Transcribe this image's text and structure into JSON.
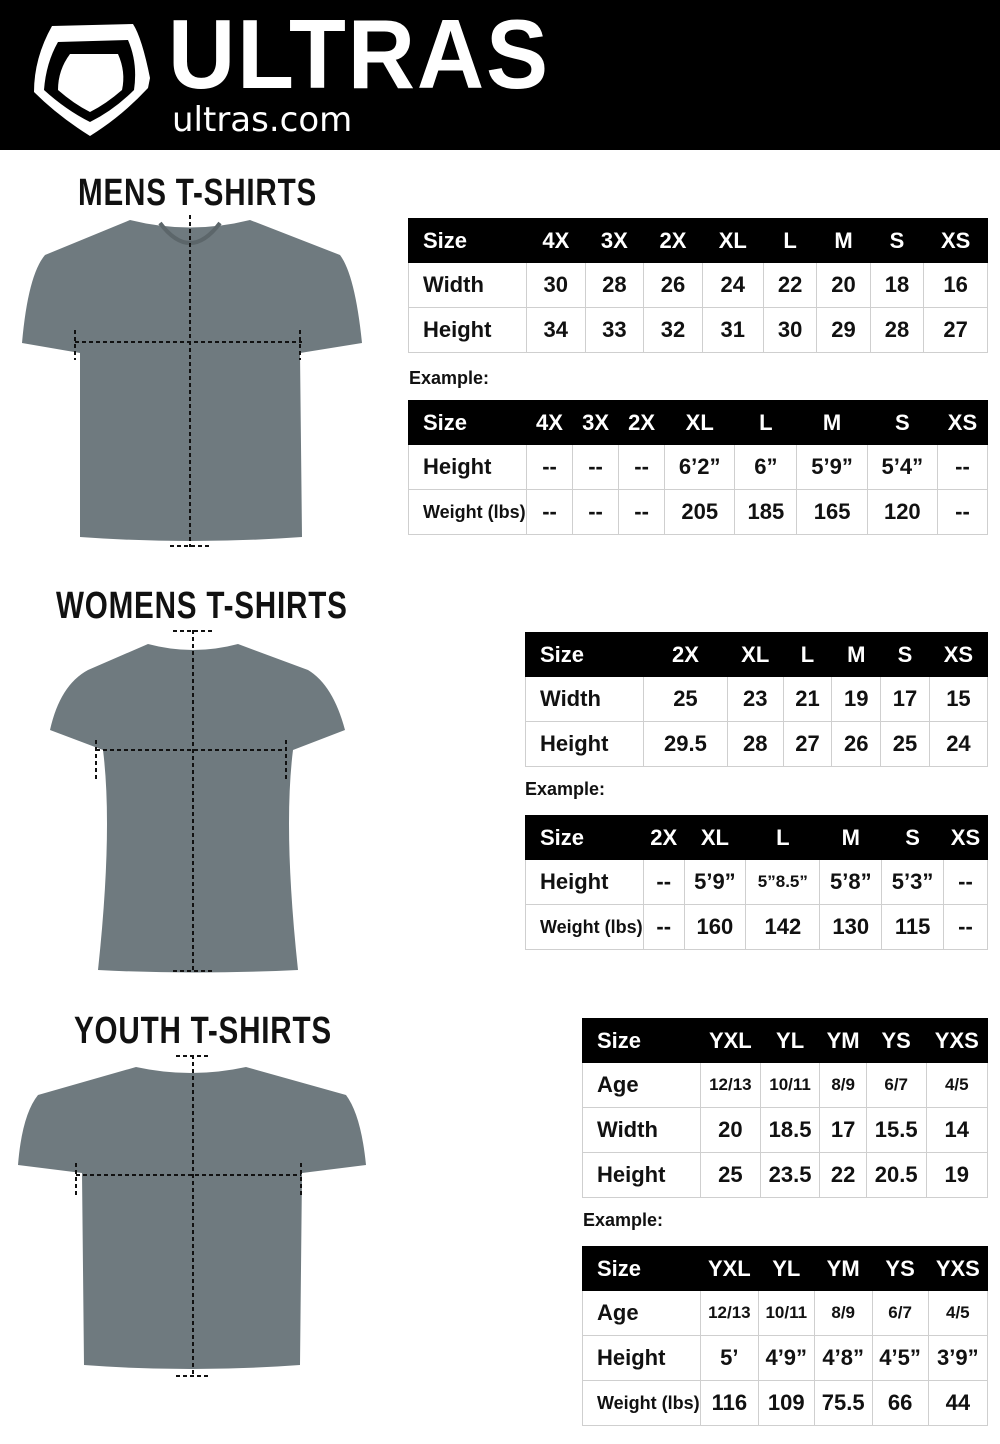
{
  "header": {
    "brand": "ULTRAS",
    "site": "ultras.com",
    "logo": "shield-logo"
  },
  "colors": {
    "header_bg": "#000000",
    "shirt_gray": "#6f7a7f",
    "table_header_bg": "#000000"
  },
  "example_label": "Example:",
  "sections": [
    {
      "title": "MENS T-SHIRTS",
      "size_table": {
        "header": [
          "Size",
          "4X",
          "3X",
          "2X",
          "XL",
          "L",
          "M",
          "S",
          "XS"
        ],
        "rows": [
          [
            "Width",
            "30",
            "28",
            "26",
            "24",
            "22",
            "20",
            "18",
            "16"
          ],
          [
            "Height",
            "34",
            "33",
            "32",
            "31",
            "30",
            "29",
            "28",
            "27"
          ]
        ]
      },
      "example_table": {
        "header": [
          "Size",
          "4X",
          "3X",
          "2X",
          "XL",
          "L",
          "M",
          "S",
          "XS"
        ],
        "rows": [
          [
            "Height",
            "--",
            "--",
            "--",
            "6’2”",
            "6”",
            "5’9”",
            "5’4”",
            "--"
          ],
          [
            "Weight (lbs)",
            "--",
            "--",
            "--",
            "205",
            "185",
            "165",
            "120",
            "--"
          ]
        ]
      }
    },
    {
      "title": "WOMENS T-SHIRTS",
      "size_table": {
        "header": [
          "Size",
          "2X",
          "XL",
          "L",
          "M",
          "S",
          "XS"
        ],
        "rows": [
          [
            "Width",
            "25",
            "23",
            "21",
            "19",
            "17",
            "15"
          ],
          [
            "Height",
            "29.5",
            "28",
            "27",
            "26",
            "25",
            "24"
          ]
        ]
      },
      "example_table": {
        "header": [
          "Size",
          "2X",
          "XL",
          "L",
          "M",
          "S",
          "XS"
        ],
        "rows": [
          [
            "Height",
            "--",
            "5’9”",
            "5”8.5”",
            "5’8”",
            "5’3”",
            "--"
          ],
          [
            "Weight (lbs)",
            "--",
            "160",
            "142",
            "130",
            "115",
            "--"
          ]
        ]
      }
    },
    {
      "title": "YOUTH T-SHIRTS",
      "size_table": {
        "header": [
          "Size",
          "YXL",
          "YL",
          "YM",
          "YS",
          "YXS"
        ],
        "rows": [
          [
            "Age",
            "12/13",
            "10/11",
            "8/9",
            "6/7",
            "4/5"
          ],
          [
            "Width",
            "20",
            "18.5",
            "17",
            "15.5",
            "14"
          ],
          [
            "Height",
            "25",
            "23.5",
            "22",
            "20.5",
            "19"
          ]
        ]
      },
      "example_table": {
        "header": [
          "Size",
          "YXL",
          "YL",
          "YM",
          "YS",
          "YXS"
        ],
        "rows": [
          [
            "Age",
            "12/13",
            "10/11",
            "8/9",
            "6/7",
            "4/5"
          ],
          [
            "Height",
            "5’",
            "4’9”",
            "4’8”",
            "4’5”",
            "3’9”"
          ],
          [
            "Weight (lbs)",
            "116",
            "109",
            "75.5",
            "66",
            "44"
          ]
        ]
      }
    }
  ]
}
